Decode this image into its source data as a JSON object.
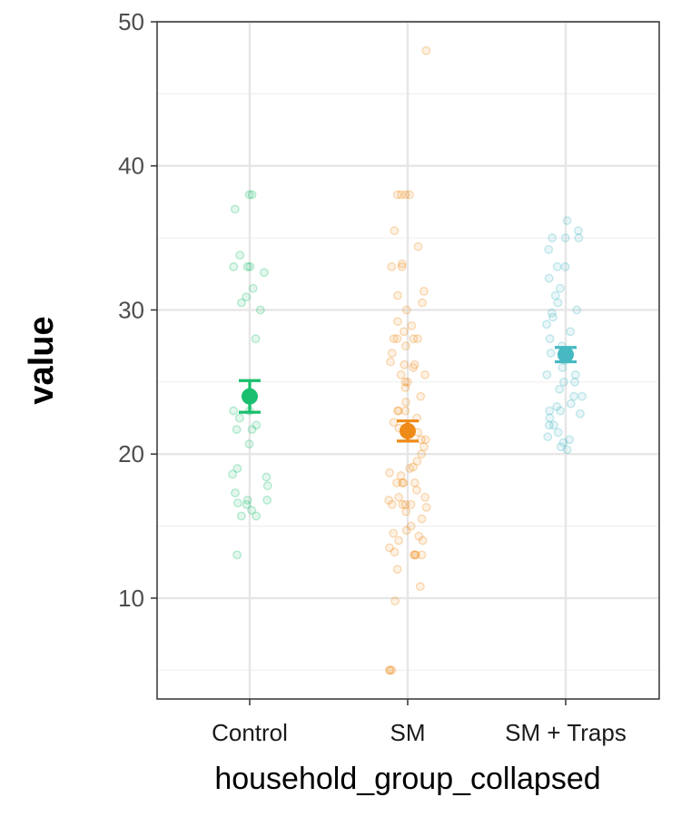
{
  "chart_data": {
    "type": "scatter",
    "xlabel": "household_group_collapsed",
    "ylabel": "value",
    "categories": [
      "Control",
      "SM",
      "SM + Traps"
    ],
    "ylim": [
      3,
      50
    ],
    "yticks": [
      10,
      20,
      30,
      40,
      50
    ],
    "grid": true,
    "colors": {
      "Control": "#19bf6e",
      "SM": "#ee8a17",
      "SM + Traps": "#46b9c2"
    },
    "summary": [
      {
        "category": "Control",
        "mean": 24.0,
        "lower": 22.9,
        "upper": 25.1
      },
      {
        "category": "SM",
        "mean": 21.6,
        "lower": 20.9,
        "upper": 22.3
      },
      {
        "category": "SM + Traps",
        "mean": 26.9,
        "lower": 26.4,
        "upper": 27.4
      }
    ],
    "points": [
      {
        "category": "Control",
        "values": [
          38,
          38,
          37,
          33.8,
          33,
          33,
          33,
          32.6,
          31.5,
          30.9,
          30.5,
          30,
          28,
          23,
          23,
          22.5,
          22,
          21.7,
          21.7,
          20.7,
          19,
          18.6,
          18.4,
          17.8,
          17.3,
          16.8,
          16.8,
          16.6,
          16.5,
          16.1,
          15.7,
          15.7,
          13
        ]
      },
      {
        "category": "SM",
        "values": [
          48,
          38,
          38,
          38,
          38,
          35.5,
          34.4,
          33.2,
          33,
          33,
          31.3,
          31,
          30.5,
          30,
          29.2,
          28.9,
          28.5,
          28,
          28,
          28,
          28,
          27.5,
          27,
          26.4,
          26.2,
          26.2,
          26,
          25.5,
          25.5,
          25,
          25,
          24.6,
          24,
          23.6,
          23,
          23,
          23,
          22.5,
          22.2,
          21.8,
          21.5,
          21,
          21,
          20.5,
          20,
          19.5,
          19.1,
          19,
          18.7,
          18.5,
          18,
          18,
          18,
          18,
          17.5,
          17,
          17,
          16.8,
          16.5,
          16.5,
          16.5,
          16.5,
          16.3,
          16,
          15.5,
          15,
          14.7,
          14.5,
          14.3,
          14,
          14,
          13.5,
          13.2,
          13,
          13,
          13,
          13,
          12,
          10.8,
          9.8,
          5,
          5,
          5
        ]
      },
      {
        "category": "SM + Traps",
        "values": [
          36.2,
          35.5,
          35,
          35,
          35,
          34.2,
          33,
          33,
          32.2,
          31.5,
          31,
          30.5,
          30,
          29.8,
          29.5,
          29,
          28.5,
          28,
          27.5,
          27,
          26.5,
          26,
          25.5,
          25.5,
          25,
          25,
          24.5,
          24,
          24,
          23.5,
          23.3,
          23,
          23,
          22.8,
          22.5,
          22,
          22,
          21.5,
          21.2,
          21,
          20.8,
          20.5,
          20.3
        ]
      }
    ]
  }
}
